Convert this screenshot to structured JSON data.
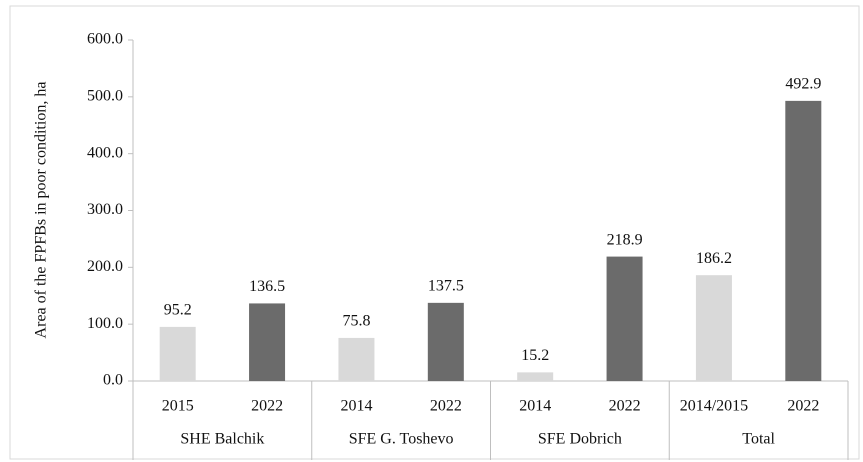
{
  "chart_data": {
    "type": "bar",
    "y_label": "Area of the FPFBs in poor condition, ha",
    "groups": [
      {
        "name": "SHE Balchik",
        "categories": [
          "2015",
          "2022"
        ],
        "values": [
          95.2,
          136.5
        ]
      },
      {
        "name": "SFE G. Toshevo",
        "categories": [
          "2014",
          "2022"
        ],
        "values": [
          75.8,
          137.5
        ]
      },
      {
        "name": "SFE Dobrich",
        "categories": [
          "2014",
          "2022"
        ],
        "values": [
          15.2,
          218.9
        ]
      },
      {
        "name": "Total",
        "categories": [
          "2014/2015",
          "2022"
        ],
        "values": [
          186.2,
          492.9
        ]
      }
    ],
    "colors": [
      "#d9d9d9",
      "#6b6b6b"
    ],
    "ylim": [
      0,
      600
    ],
    "yticks": [
      {
        "value": 0,
        "label": "0.0"
      },
      {
        "value": 100,
        "label": "100.0"
      },
      {
        "value": 200,
        "label": "200.0"
      },
      {
        "value": 300,
        "label": "300.0"
      },
      {
        "value": 400,
        "label": "400.0"
      },
      {
        "value": 500,
        "label": "500.0"
      },
      {
        "value": 600,
        "label": "600.0"
      }
    ],
    "grid": false
  }
}
